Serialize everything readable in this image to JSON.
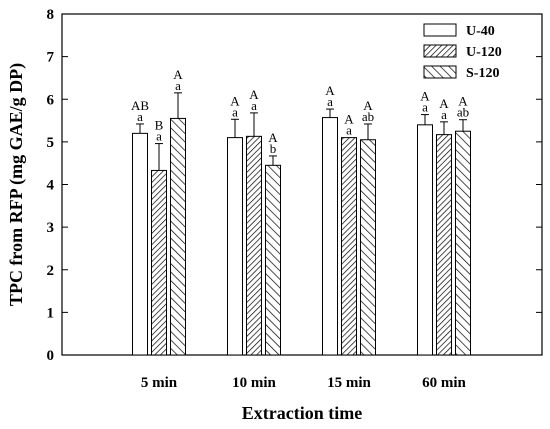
{
  "chart_data": {
    "type": "bar",
    "title": "",
    "xlabel": "Extraction time",
    "ylabel": "TPC  from RFP (mg GAE/g DP)",
    "ylim": [
      0,
      8
    ],
    "yticks": [
      "0",
      "1",
      "2",
      "3",
      "4",
      "5",
      "6",
      "7",
      "8"
    ],
    "categories": [
      "5 min",
      "10 min",
      "15 min",
      "60 min"
    ],
    "legend_position": "top-right",
    "grid": false,
    "series": [
      {
        "name": "U-40",
        "pattern": "none",
        "values": [
          5.2,
          5.1,
          5.57,
          5.4
        ],
        "errors": [
          0.22,
          0.43,
          0.2,
          0.24
        ],
        "upper_letters": [
          "AB",
          "A",
          "A",
          "A"
        ],
        "lower_letters": [
          "a",
          "a",
          "a",
          "a"
        ]
      },
      {
        "name": "U-120",
        "pattern": "dense",
        "values": [
          4.33,
          5.13,
          5.1,
          5.17
        ],
        "errors": [
          0.63,
          0.55,
          0.0,
          0.3
        ],
        "upper_letters": [
          "B",
          "A",
          "A",
          "A"
        ],
        "lower_letters": [
          "a",
          "a",
          "a",
          "a"
        ]
      },
      {
        "name": "S-120",
        "pattern": "sparse",
        "values": [
          5.55,
          4.45,
          5.05,
          5.25
        ],
        "errors": [
          0.6,
          0.22,
          0.37,
          0.27
        ],
        "upper_letters": [
          "A",
          "A",
          "A",
          "A"
        ],
        "lower_letters": [
          "a",
          "b",
          "ab",
          "ab"
        ]
      }
    ]
  }
}
